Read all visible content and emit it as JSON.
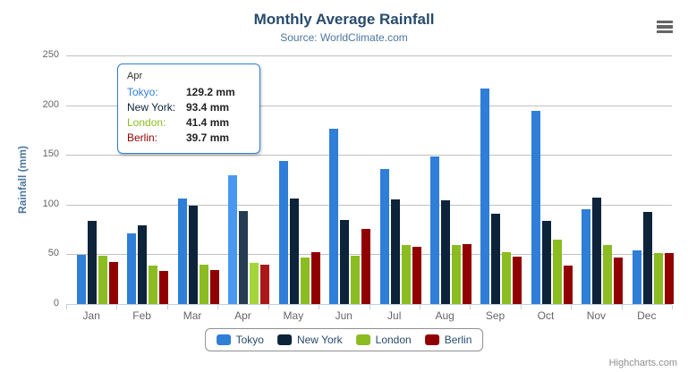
{
  "chart_data": {
    "type": "bar",
    "title": "Monthly Average Rainfall",
    "subtitle": "Source: WorldClimate.com",
    "xlabel": "",
    "ylabel": "Rainfall (mm)",
    "ylim": [
      0,
      250
    ],
    "yticks": [
      0,
      50,
      100,
      150,
      200,
      250
    ],
    "grid": true,
    "legend_position": "bottom",
    "categories": [
      "Jan",
      "Feb",
      "Mar",
      "Apr",
      "May",
      "Jun",
      "Jul",
      "Aug",
      "Sep",
      "Oct",
      "Nov",
      "Dec"
    ],
    "hovered_category": "Apr",
    "series": [
      {
        "name": "Tokyo",
        "color": "#2f7ed8",
        "hover_color": "#4897f1",
        "values": [
          49.9,
          71.5,
          106.4,
          129.2,
          144.0,
          176.0,
          135.6,
          148.5,
          216.4,
          194.1,
          95.6,
          54.4
        ]
      },
      {
        "name": "New York",
        "color": "#0d233a",
        "hover_color": "#263c53",
        "values": [
          83.6,
          78.8,
          98.5,
          93.4,
          106.0,
          84.5,
          105.0,
          104.3,
          91.2,
          83.5,
          106.6,
          92.3
        ]
      },
      {
        "name": "London",
        "color": "#8bbc21",
        "hover_color": "#a4d53a",
        "values": [
          48.9,
          38.8,
          39.3,
          41.4,
          47.0,
          48.3,
          59.0,
          59.6,
          52.4,
          65.2,
          59.3,
          51.2
        ]
      },
      {
        "name": "Berlin",
        "color": "#910000",
        "hover_color": "#aa1919",
        "values": [
          42.4,
          33.2,
          34.5,
          39.7,
          52.6,
          75.5,
          57.4,
          60.4,
          47.6,
          39.1,
          46.8,
          51.1
        ]
      }
    ]
  },
  "tooltip": {
    "header": "Apr",
    "rows": [
      {
        "name": "Tokyo:",
        "value": "129.2 mm",
        "color": "#2f7ed8"
      },
      {
        "name": "New York:",
        "value": "93.4 mm",
        "color": "#0d233a"
      },
      {
        "name": "London:",
        "value": "41.4 mm",
        "color": "#8bbc21"
      },
      {
        "name": "Berlin:",
        "value": "39.7 mm",
        "color": "#910000"
      }
    ]
  },
  "credits": {
    "label": "Highcharts.com"
  },
  "icons": {
    "context_menu": "hamburger-menu-icon"
  },
  "colors": {
    "title": "#274b6d",
    "subtitle": "#4d759e",
    "axis_title": "#4d759e",
    "axis_label": "#666666",
    "axis_line": "#C0D0E0",
    "gridline": "#C0C0C0",
    "legend_text": "#274b6d",
    "legend_border": "#909090",
    "tooltip_border": "#2f7ed8",
    "credits": "#909090"
  }
}
